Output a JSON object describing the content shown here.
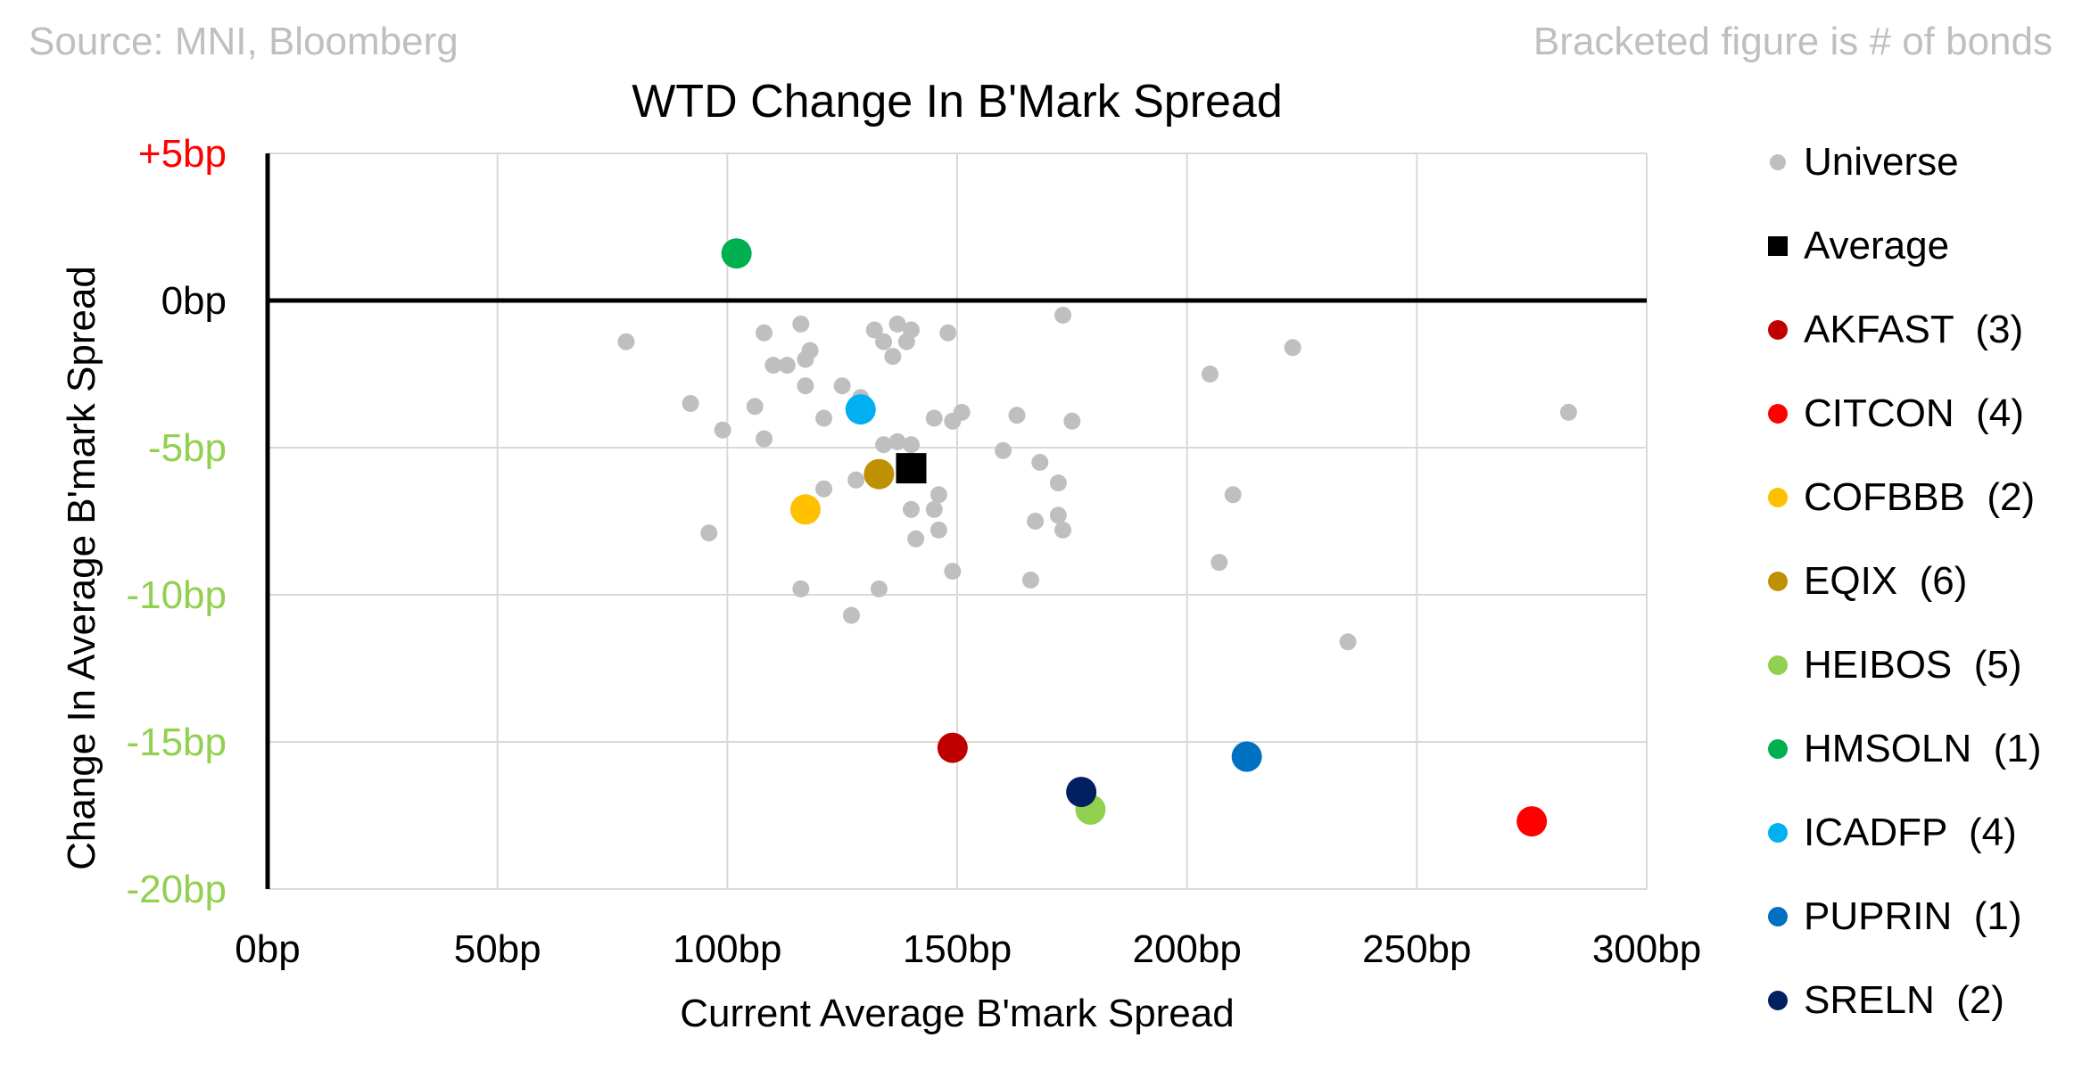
{
  "header": {
    "source": "Source: MNI, Bloomberg",
    "note": "Bracketed figure is # of bonds"
  },
  "chart_data": {
    "type": "scatter",
    "title": "WTD Change In B'Mark Spread",
    "xlabel": "Current Average B'mark Spread",
    "ylabel": "Change In Average B'mark Spread",
    "xlim": [
      0,
      300
    ],
    "ylim": [
      -20,
      5
    ],
    "grid": true,
    "legend_position": "right",
    "x_ticks": [
      {
        "value": 0,
        "label": "0bp"
      },
      {
        "value": 50,
        "label": "50bp"
      },
      {
        "value": 100,
        "label": "100bp"
      },
      {
        "value": 150,
        "label": "150bp"
      },
      {
        "value": 200,
        "label": "200bp"
      },
      {
        "value": 250,
        "label": "250bp"
      },
      {
        "value": 300,
        "label": "300bp"
      }
    ],
    "y_ticks": [
      {
        "value": 5,
        "label": "+5bp",
        "color": "#ff0000"
      },
      {
        "value": 0,
        "label": "0bp",
        "color": "#000000"
      },
      {
        "value": -5,
        "label": "-5bp",
        "color": "#92d050"
      },
      {
        "value": -10,
        "label": "-10bp",
        "color": "#92d050"
      },
      {
        "value": -15,
        "label": "-15bp",
        "color": "#92d050"
      },
      {
        "value": -20,
        "label": "-20bp",
        "color": "#92d050"
      }
    ],
    "series": [
      {
        "name": "Universe",
        "color": "#bfbfbf",
        "marker": "circle",
        "size": "small",
        "points": [
          {
            "x": 78,
            "y": -1.4
          },
          {
            "x": 92,
            "y": -3.5
          },
          {
            "x": 96,
            "y": -7.9
          },
          {
            "x": 99,
            "y": -4.4
          },
          {
            "x": 106,
            "y": -3.6
          },
          {
            "x": 108,
            "y": -1.1
          },
          {
            "x": 108,
            "y": -4.7
          },
          {
            "x": 110,
            "y": -2.2
          },
          {
            "x": 113,
            "y": -2.2
          },
          {
            "x": 116,
            "y": -0.8
          },
          {
            "x": 117,
            "y": -2.0
          },
          {
            "x": 117,
            "y": -2.9
          },
          {
            "x": 118,
            "y": -1.7
          },
          {
            "x": 121,
            "y": -4.0
          },
          {
            "x": 121,
            "y": -6.4
          },
          {
            "x": 116,
            "y": -9.8
          },
          {
            "x": 125,
            "y": -2.9
          },
          {
            "x": 127,
            "y": -10.7
          },
          {
            "x": 128,
            "y": -6.1
          },
          {
            "x": 129,
            "y": -3.3
          },
          {
            "x": 132,
            "y": -1.0
          },
          {
            "x": 133,
            "y": -9.8
          },
          {
            "x": 134,
            "y": -4.9
          },
          {
            "x": 134,
            "y": -1.4
          },
          {
            "x": 136,
            "y": -1.9
          },
          {
            "x": 137,
            "y": -0.8
          },
          {
            "x": 137,
            "y": -4.8
          },
          {
            "x": 139,
            "y": -1.4
          },
          {
            "x": 140,
            "y": -1.0
          },
          {
            "x": 140,
            "y": -4.9
          },
          {
            "x": 140,
            "y": -7.1
          },
          {
            "x": 141,
            "y": -8.1
          },
          {
            "x": 145,
            "y": -7.1
          },
          {
            "x": 145,
            "y": -4.0
          },
          {
            "x": 146,
            "y": -6.6
          },
          {
            "x": 146,
            "y": -7.8
          },
          {
            "x": 148,
            "y": -1.1
          },
          {
            "x": 149,
            "y": -9.2
          },
          {
            "x": 149,
            "y": -4.1
          },
          {
            "x": 151,
            "y": -3.8
          },
          {
            "x": 160,
            "y": -5.1
          },
          {
            "x": 163,
            "y": -3.9
          },
          {
            "x": 166,
            "y": -9.5
          },
          {
            "x": 167,
            "y": -7.5
          },
          {
            "x": 168,
            "y": -5.5
          },
          {
            "x": 172,
            "y": -7.3
          },
          {
            "x": 172,
            "y": -6.2
          },
          {
            "x": 173,
            "y": -7.8
          },
          {
            "x": 175,
            "y": -4.1
          },
          {
            "x": 173,
            "y": -0.5
          },
          {
            "x": 205,
            "y": -2.5
          },
          {
            "x": 207,
            "y": -8.9
          },
          {
            "x": 210,
            "y": -6.6
          },
          {
            "x": 223,
            "y": -1.6
          },
          {
            "x": 235,
            "y": -11.6
          },
          {
            "x": 283,
            "y": -3.8
          }
        ]
      },
      {
        "name": "Average",
        "color": "#000000",
        "marker": "square",
        "size": "large",
        "points": [
          {
            "x": 140,
            "y": -5.7
          }
        ]
      },
      {
        "name": "AKFAST  (3)",
        "color": "#c00000",
        "marker": "circle",
        "size": "large",
        "points": [
          {
            "x": 149,
            "y": -15.2
          }
        ]
      },
      {
        "name": "CITCON  (4)",
        "color": "#ff0000",
        "marker": "circle",
        "size": "large",
        "points": [
          {
            "x": 275,
            "y": -17.7
          }
        ]
      },
      {
        "name": "COFBBB  (2)",
        "color": "#ffc000",
        "marker": "circle",
        "size": "large",
        "points": [
          {
            "x": 117,
            "y": -7.1
          }
        ]
      },
      {
        "name": "EQIX  (6)",
        "color": "#bf9000",
        "marker": "circle",
        "size": "large",
        "points": [
          {
            "x": 133,
            "y": -5.9
          }
        ]
      },
      {
        "name": "HEIBOS  (5)",
        "color": "#92d050",
        "marker": "circle",
        "size": "large",
        "points": [
          {
            "x": 179,
            "y": -17.3
          }
        ]
      },
      {
        "name": "HMSOLN  (1)",
        "color": "#00b050",
        "marker": "circle",
        "size": "large",
        "points": [
          {
            "x": 102,
            "y": 1.6
          }
        ]
      },
      {
        "name": "ICADFP  (4)",
        "color": "#00b0f0",
        "marker": "circle",
        "size": "large",
        "points": [
          {
            "x": 129,
            "y": -3.7
          }
        ]
      },
      {
        "name": "PUPRIN  (1)",
        "color": "#0070c0",
        "marker": "circle",
        "size": "large",
        "points": [
          {
            "x": 213,
            "y": -15.5
          }
        ]
      },
      {
        "name": "SRELN  (2)",
        "color": "#002060",
        "marker": "circle",
        "size": "large",
        "points": [
          {
            "x": 177,
            "y": -16.7
          }
        ]
      }
    ]
  }
}
